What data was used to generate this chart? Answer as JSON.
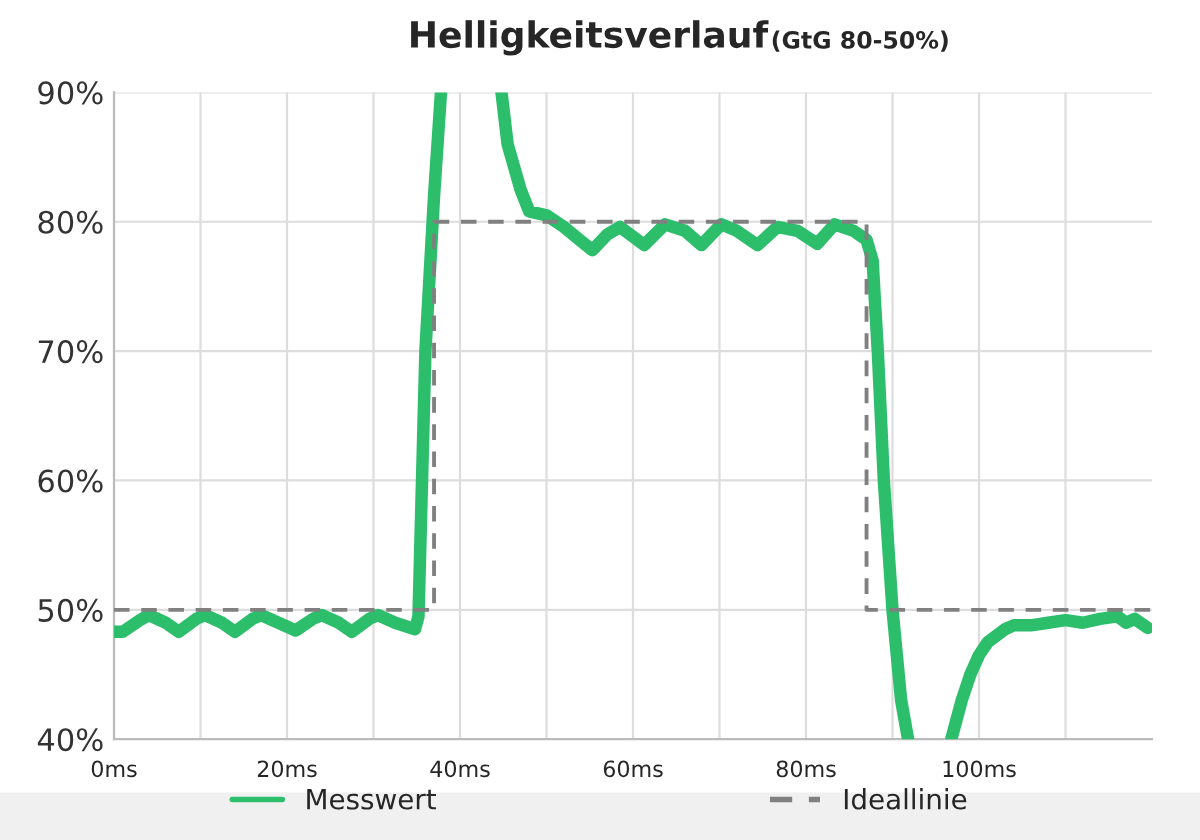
{
  "chart_data": {
    "type": "line",
    "title": "Helligkeitsverlauf",
    "subtitle": "(GtG 80-50%)",
    "xlim": [
      0,
      120
    ],
    "ylim": [
      40,
      90
    ],
    "xticks": [
      {
        "value": 0,
        "label": "0ms"
      },
      {
        "value": 10,
        "label": null
      },
      {
        "value": 20,
        "label": "20ms"
      },
      {
        "value": 30,
        "label": null
      },
      {
        "value": 40,
        "label": "40ms"
      },
      {
        "value": 50,
        "label": null
      },
      {
        "value": 60,
        "label": "60ms"
      },
      {
        "value": 70,
        "label": null
      },
      {
        "value": 80,
        "label": "80ms"
      },
      {
        "value": 90,
        "label": null
      },
      {
        "value": 100,
        "label": "100ms"
      },
      {
        "value": 110,
        "label": null
      }
    ],
    "yticks": [
      {
        "value": 40,
        "label": "40%"
      },
      {
        "value": 50,
        "label": "50%"
      },
      {
        "value": 60,
        "label": "60%"
      },
      {
        "value": 70,
        "label": "70%"
      },
      {
        "value": 80,
        "label": "80%"
      },
      {
        "value": 90,
        "label": "90%"
      }
    ],
    "grid": true,
    "legend": "bottom",
    "marker": "none",
    "series": [
      {
        "name": "Messwert",
        "color": "#2dbe6c",
        "line_style": "solid",
        "x": [
          0,
          1,
          3,
          4,
          6,
          7.5,
          9.5,
          10.5,
          12.5,
          14,
          16,
          17,
          19,
          21,
          23,
          24,
          26,
          27.5,
          29.5,
          30.5,
          32.5,
          34.8,
          35.2,
          36,
          37,
          37.8,
          41,
          44.8,
          45.5,
          47,
          48,
          50,
          52,
          54,
          55.3,
          57,
          58.5,
          61.3,
          63.7,
          66,
          67.9,
          70.2,
          72,
          74.4,
          76.7,
          79,
          81.3,
          83.3,
          85.5,
          87,
          87.7,
          88.3,
          89,
          90,
          91,
          91.8,
          94,
          96.8,
          98,
          99,
          100,
          101,
          103,
          104,
          106,
          108,
          110,
          112,
          114,
          116,
          117,
          118,
          119.5
        ],
        "values": [
          48.3,
          48.3,
          49.2,
          49.6,
          49.0,
          48.3,
          49.3,
          49.6,
          49.0,
          48.3,
          49.3,
          49.6,
          49.0,
          48.4,
          49.3,
          49.6,
          49.0,
          48.3,
          49.3,
          49.6,
          49.0,
          48.5,
          49.5,
          70,
          82,
          90,
          null,
          90,
          86,
          82.5,
          80.8,
          80.5,
          79.6,
          78.5,
          77.8,
          79,
          79.6,
          78.2,
          79.8,
          79.3,
          78.2,
          79.8,
          79.3,
          78.2,
          79.6,
          79.3,
          78.3,
          79.8,
          79.3,
          78.6,
          77,
          70,
          60,
          50,
          43,
          40,
          null,
          40,
          43,
          45,
          46.5,
          47.5,
          48.5,
          48.8,
          48.8,
          49,
          49.2,
          49,
          49.3,
          49.5,
          49.0,
          49.3,
          48.6
        ]
      },
      {
        "name": "Ideallinie",
        "color": "#808080",
        "line_style": "dashed",
        "x": [
          0,
          37,
          37,
          87,
          87,
          120
        ],
        "values": [
          50,
          50,
          80,
          80,
          50,
          50
        ]
      }
    ]
  }
}
